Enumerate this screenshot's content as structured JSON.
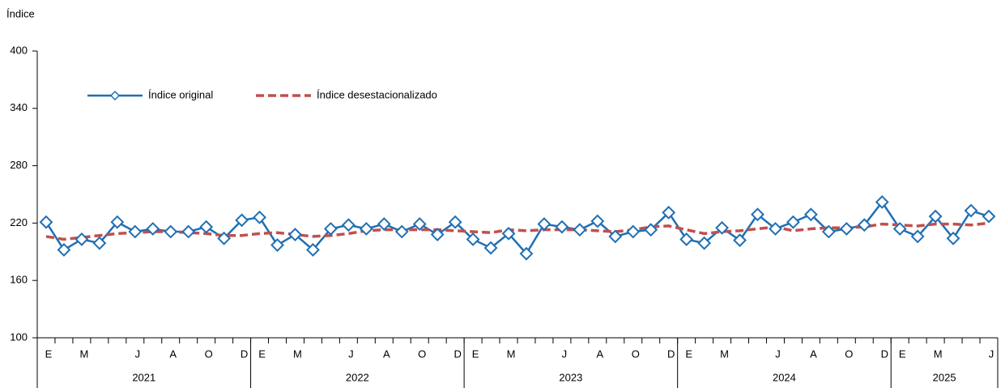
{
  "chart_data": {
    "type": "line",
    "y_axis_title": "Índice",
    "categories": [
      "E",
      null,
      "M",
      null,
      null,
      "J",
      null,
      "A",
      null,
      "O",
      null,
      "D",
      "E",
      null,
      "M",
      null,
      null,
      "J",
      null,
      "A",
      null,
      "O",
      null,
      "D",
      "E",
      null,
      "M",
      null,
      null,
      "J",
      null,
      "A",
      null,
      "O",
      null,
      "D",
      "E",
      null,
      "M",
      null,
      null,
      "J",
      null,
      "A",
      null,
      "O",
      null,
      "D",
      "E",
      null,
      "M",
      null,
      null,
      "J"
    ],
    "year_groups": [
      "2021",
      "2022",
      "2023",
      "2024",
      "2025"
    ],
    "series": [
      {
        "name": "Índice original",
        "color": "#1f6fb4",
        "marker": "diamond",
        "dashed": false,
        "values": [
          221,
          192,
          203,
          199,
          221,
          211,
          214,
          211,
          211,
          216,
          204,
          223,
          226,
          197,
          208,
          192,
          214,
          218,
          214,
          219,
          211,
          219,
          208,
          221,
          203,
          194,
          209,
          188,
          219,
          216,
          213,
          222,
          206,
          211,
          213,
          231,
          203,
          199,
          215,
          202,
          229,
          214,
          221,
          229,
          211,
          214,
          218,
          242,
          214,
          206,
          227,
          204,
          233,
          227
        ]
      },
      {
        "name": "Índice desestacionalizado",
        "color": "#c0504d",
        "marker": null,
        "dashed": true,
        "values": [
          206,
          203,
          205,
          207,
          209,
          210,
          211,
          211,
          210,
          209,
          207,
          207,
          209,
          210,
          208,
          206,
          207,
          209,
          212,
          213,
          213,
          213,
          213,
          212,
          211,
          210,
          213,
          212,
          213,
          213,
          213,
          212,
          211,
          213,
          216,
          217,
          213,
          209,
          211,
          212,
          214,
          216,
          212,
          214,
          215,
          215,
          216,
          219,
          218,
          217,
          219,
          219,
          218,
          220
        ]
      }
    ],
    "ylim": [
      100,
      400
    ],
    "yticks": [
      100,
      160,
      220,
      280,
      340,
      400
    ],
    "grid": false,
    "legend": "top-left"
  }
}
